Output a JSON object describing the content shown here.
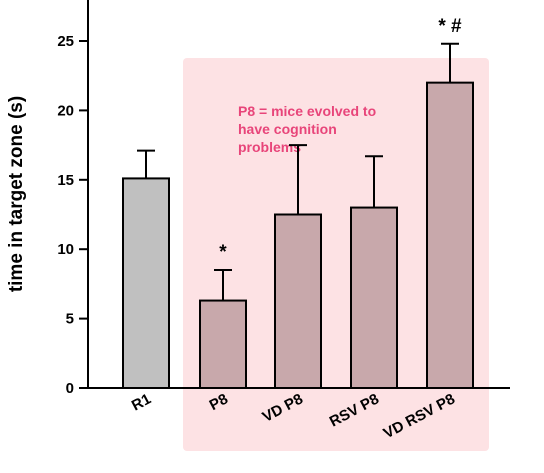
{
  "chart_data": {
    "type": "bar",
    "ylabel": "time in target zone (s)",
    "xlabel": "",
    "ylim": [
      0,
      28
    ],
    "yticks": [
      0,
      5,
      10,
      15,
      20,
      25
    ],
    "categories": [
      "R1",
      "P8",
      "VD P8",
      "RSV P8",
      "VD RSV P8"
    ],
    "values": [
      15.1,
      6.3,
      12.5,
      13.0,
      22.0
    ],
    "errors": [
      2.0,
      2.2,
      5.0,
      3.7,
      2.8
    ],
    "significance": [
      "",
      "*",
      "",
      "",
      "* #"
    ],
    "annotation": [
      "P8 = mice evolved to",
      "have cognition",
      "problems"
    ],
    "colors": {
      "control_bar": "#c0c0c0",
      "treated_bar": "#c8a8ab",
      "highlight_region": "#fde2e4",
      "annotation_text": "#e8457a"
    }
  }
}
